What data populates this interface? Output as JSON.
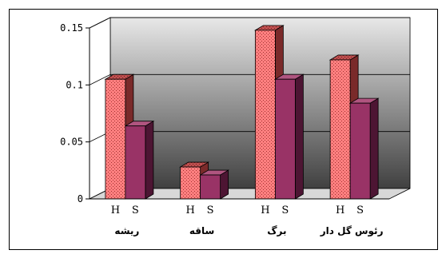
{
  "chart_data": {
    "type": "bar",
    "variant": "3d-grouped",
    "categories": [
      "ریشه",
      "ساقه",
      "برگ",
      "رئوس گل دار"
    ],
    "series": [
      {
        "name": "H",
        "values": [
          0.105,
          0.028,
          0.148,
          0.122
        ],
        "color": "#ff8080",
        "pattern": "dotted"
      },
      {
        "name": "S",
        "values": [
          0.064,
          0.021,
          0.105,
          0.084
        ],
        "color": "#993366",
        "pattern": "solid"
      }
    ],
    "yticks": [
      0,
      0.05,
      0.1,
      0.15
    ],
    "ytick_labels": [
      "0",
      "0.05",
      "0.1",
      "0.15"
    ],
    "ylim": [
      0,
      0.15
    ],
    "grid": true,
    "legend": "none",
    "wall_gradient": [
      "#e8e8e8",
      "#404040"
    ]
  }
}
